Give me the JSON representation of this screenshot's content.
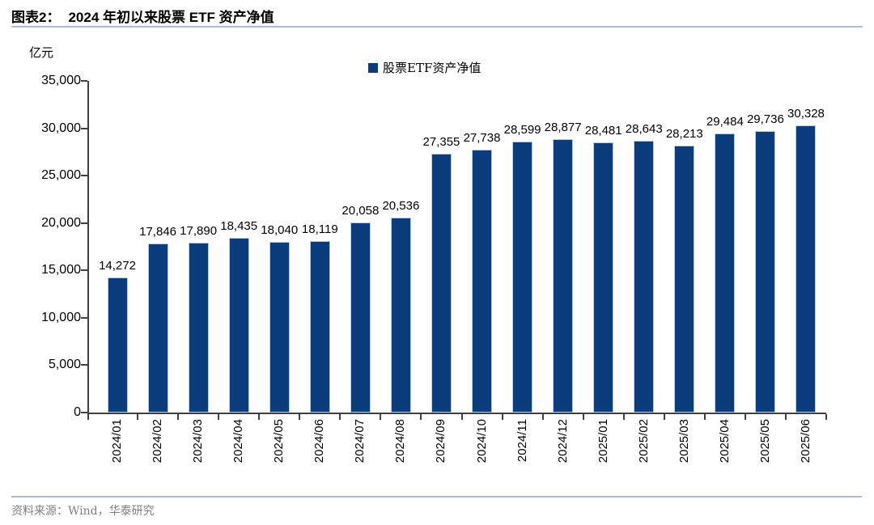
{
  "header": {
    "figure_label": "图表2：",
    "title": "2024 年初以来股票 ETF 资产净值"
  },
  "chart_data": {
    "type": "bar",
    "title": "2024 年初以来股票 ETF 资产净值",
    "unit_label": "亿元",
    "legend_entries": [
      "股票ETF资产净值"
    ],
    "legend_position": "top-center",
    "categories": [
      "2024/01",
      "2024/02",
      "2024/03",
      "2024/04",
      "2024/05",
      "2024/06",
      "2024/07",
      "2024/08",
      "2024/09",
      "2024/10",
      "2024/11",
      "2024/12",
      "2025/01",
      "2025/02",
      "2025/03",
      "2025/04",
      "2025/05",
      "2025/06"
    ],
    "values": [
      14272,
      17846,
      17890,
      18435,
      18040,
      18119,
      20058,
      20536,
      27355,
      27738,
      28599,
      28877,
      28481,
      28643,
      28213,
      29484,
      29736,
      30328
    ],
    "xlabel": "",
    "ylabel": "亿元",
    "ylim": [
      0,
      35000
    ],
    "ytick_step": 5000,
    "grid": false,
    "data_labels_shown": true,
    "colors": {
      "bar_fill": "#0b3d7d",
      "bar_border": "#b9cce3",
      "axis": "#404040",
      "rule_line": "#aabccd",
      "footer_text": "#808080",
      "label_text": "#000000"
    }
  },
  "footer": {
    "source": "资料来源：Wind，华泰研究"
  }
}
